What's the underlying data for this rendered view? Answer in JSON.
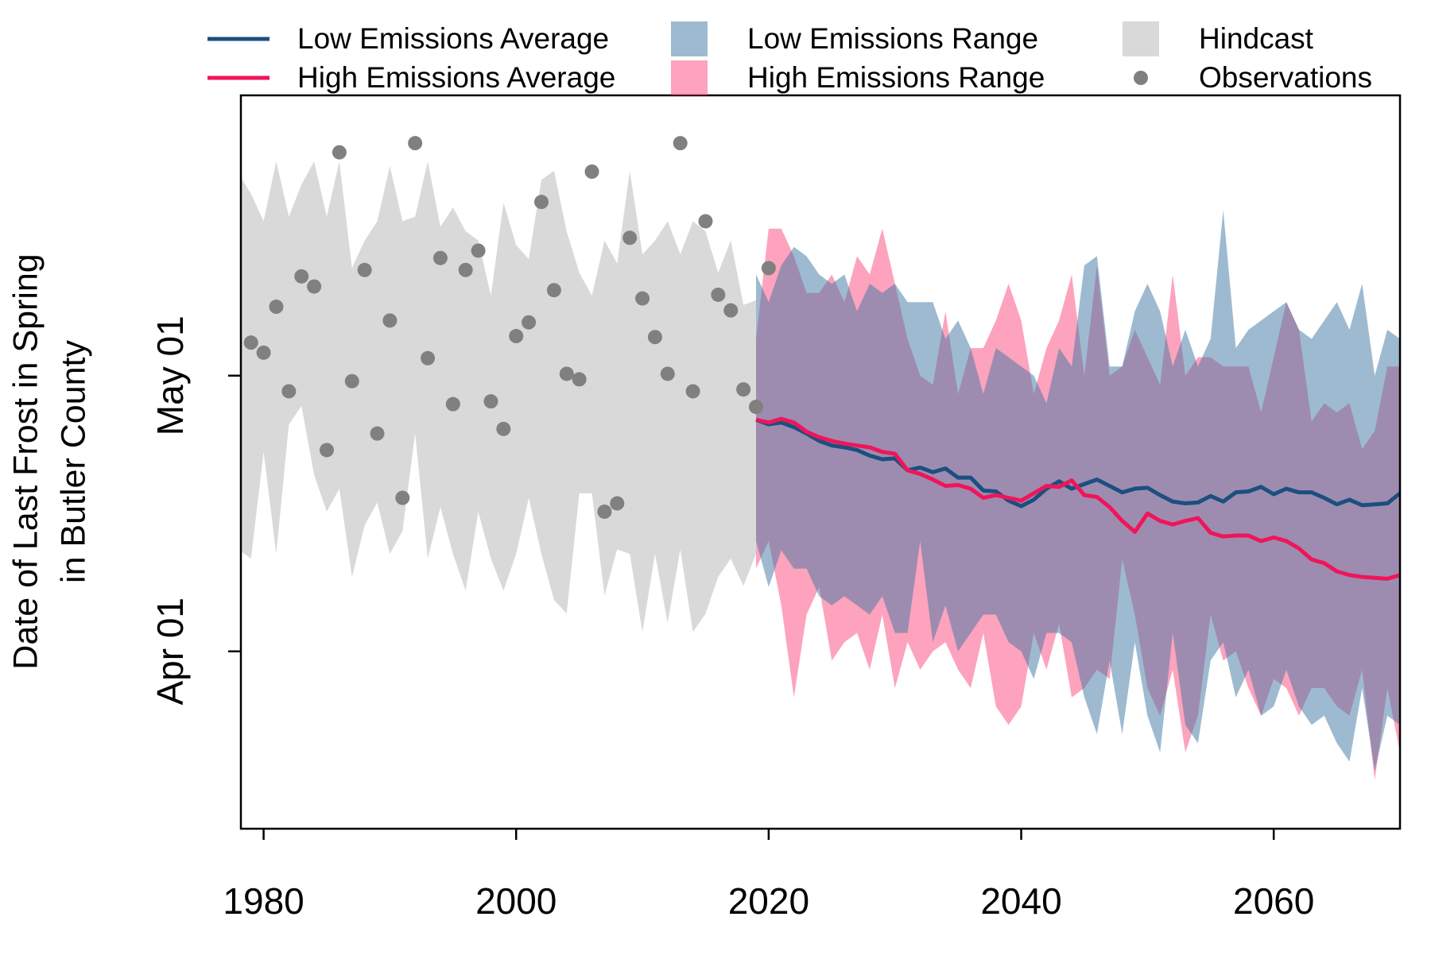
{
  "chart_data": {
    "type": "line",
    "ylabel": [
      "Date of Last Frost in Spring",
      "in Butler County"
    ],
    "xlim": [
      1978.2,
      2070
    ],
    "xticks": [
      1980,
      2000,
      2020,
      2040,
      2060
    ],
    "ylim": [
      71.7,
      151.5
    ],
    "yticks": [
      {
        "value": 91,
        "label": "Apr 01"
      },
      {
        "value": 121,
        "label": "May 01"
      }
    ],
    "series": [
      {
        "name": "Low Emissions Average",
        "type": "line",
        "color": "#1b4f80",
        "x": [
          2019,
          2020,
          2021,
          2022,
          2023,
          2024,
          2025,
          2026,
          2027,
          2028,
          2029,
          2030,
          2031,
          2032,
          2033,
          2034,
          2035,
          2036,
          2037,
          2038,
          2039,
          2040,
          2041,
          2042,
          2043,
          2044,
          2045,
          2046,
          2047,
          2048,
          2049,
          2050,
          2051,
          2052,
          2053,
          2054,
          2055,
          2056,
          2057,
          2058,
          2059,
          2060,
          2061,
          2062,
          2063,
          2064,
          2065,
          2066,
          2067,
          2068,
          2069,
          2070
        ],
        "values": [
          116.2,
          115.7,
          115.9,
          115.4,
          114.7,
          113.9,
          113.4,
          113.2,
          112.9,
          112.3,
          111.9,
          112.0,
          110.7,
          111.0,
          110.5,
          110.9,
          109.9,
          109.9,
          108.5,
          108.4,
          107.4,
          106.8,
          107.5,
          108.7,
          109.5,
          108.7,
          109.2,
          109.7,
          109.0,
          108.3,
          108.7,
          108.8,
          108.0,
          107.3,
          107.1,
          107.2,
          107.9,
          107.3,
          108.3,
          108.4,
          108.9,
          108.1,
          108.7,
          108.3,
          108.3,
          107.7,
          107.0,
          107.5,
          106.9,
          107.0,
          107.1,
          108.2
        ]
      },
      {
        "name": "High Emissions Average",
        "type": "line",
        "color": "#f0155a",
        "x": [
          2019,
          2020,
          2021,
          2022,
          2023,
          2024,
          2025,
          2026,
          2027,
          2028,
          2029,
          2030,
          2031,
          2032,
          2033,
          2034,
          2035,
          2036,
          2037,
          2038,
          2039,
          2040,
          2041,
          2042,
          2043,
          2044,
          2045,
          2046,
          2047,
          2048,
          2049,
          2050,
          2051,
          2052,
          2053,
          2054,
          2055,
          2056,
          2057,
          2058,
          2059,
          2060,
          2061,
          2062,
          2063,
          2064,
          2065,
          2066,
          2067,
          2068,
          2069,
          2070
        ],
        "values": [
          116.2,
          115.9,
          116.3,
          115.9,
          114.9,
          114.3,
          113.9,
          113.6,
          113.4,
          113.2,
          112.7,
          112.5,
          110.7,
          110.3,
          109.7,
          109.0,
          109.1,
          108.7,
          107.7,
          108.0,
          107.7,
          107.4,
          108.2,
          109.0,
          108.9,
          109.6,
          108.0,
          107.8,
          106.7,
          105.2,
          104.0,
          106.0,
          105.2,
          104.8,
          105.2,
          105.5,
          103.9,
          103.5,
          103.6,
          103.6,
          103.0,
          103.4,
          103.0,
          102.2,
          101.0,
          100.6,
          99.7,
          99.3,
          99.1,
          99.0,
          98.9,
          99.3
        ]
      },
      {
        "name": "Low Emissions Range",
        "type": "band",
        "color": "rgba(61,117,163,0.5)",
        "x": [
          2019,
          2020,
          2021,
          2022,
          2023,
          2024,
          2025,
          2026,
          2027,
          2028,
          2029,
          2030,
          2031,
          2032,
          2033,
          2034,
          2035,
          2036,
          2037,
          2038,
          2039,
          2040,
          2041,
          2042,
          2043,
          2044,
          2045,
          2046,
          2047,
          2048,
          2049,
          2050,
          2051,
          2052,
          2053,
          2054,
          2055,
          2056,
          2057,
          2058,
          2059,
          2060,
          2061,
          2062,
          2063,
          2064,
          2065,
          2066,
          2067,
          2068,
          2069,
          2070
        ],
        "upper": [
          132,
          129,
          133,
          135,
          134,
          132,
          131,
          132,
          128,
          131,
          130,
          131,
          129,
          129,
          129,
          125,
          127,
          124,
          119,
          124,
          123,
          122,
          121,
          118,
          124,
          122,
          133,
          134,
          122,
          122,
          128,
          131,
          128,
          122,
          126,
          122,
          125,
          139,
          124,
          126,
          127,
          128,
          129,
          126,
          125,
          127,
          129,
          126,
          131,
          121,
          126,
          125
        ],
        "lower": [
          103,
          98,
          102,
          100,
          100,
          97,
          96,
          97,
          96,
          95,
          97,
          93,
          93,
          103,
          92,
          96,
          91,
          93,
          95,
          95,
          92,
          91,
          88,
          93,
          93,
          92,
          86,
          82,
          90,
          82,
          92,
          84,
          80,
          93,
          83,
          81,
          90,
          92,
          86,
          89,
          84,
          85,
          89,
          85,
          83,
          84,
          81,
          79,
          87,
          78,
          84,
          83
        ]
      },
      {
        "name": "High Emissions Range",
        "type": "band",
        "color": "rgba(252,72,124,0.5)",
        "x": [
          2019,
          2020,
          2021,
          2022,
          2023,
          2024,
          2025,
          2026,
          2027,
          2028,
          2029,
          2030,
          2031,
          2032,
          2033,
          2034,
          2035,
          2036,
          2037,
          2038,
          2039,
          2040,
          2041,
          2042,
          2043,
          2044,
          2045,
          2046,
          2047,
          2048,
          2049,
          2050,
          2051,
          2052,
          2053,
          2054,
          2055,
          2056,
          2057,
          2058,
          2059,
          2060,
          2061,
          2062,
          2063,
          2064,
          2065,
          2066,
          2067,
          2068,
          2069,
          2070
        ],
        "upper": [
          125,
          137,
          137,
          134,
          130,
          130,
          132,
          129,
          134,
          132,
          137,
          131,
          125,
          121,
          120,
          128,
          119,
          124,
          124,
          127,
          131,
          127,
          119,
          124,
          127,
          132,
          121,
          133,
          121,
          122,
          126,
          123,
          120,
          132,
          121,
          123,
          123,
          122,
          122,
          122,
          117,
          123,
          129,
          126,
          116,
          118,
          117,
          118,
          113,
          115,
          122,
          122
        ],
        "lower": [
          100,
          103,
          96,
          86,
          95,
          98,
          90,
          92,
          93,
          89,
          95,
          87,
          92,
          89,
          91,
          92,
          89,
          87,
          93,
          85,
          83,
          85,
          93,
          89,
          94,
          86,
          87,
          89,
          88,
          101,
          95,
          87,
          84,
          89,
          80,
          84,
          95,
          90,
          91,
          87,
          84,
          88,
          87,
          84,
          87,
          87,
          85,
          84,
          89,
          77,
          87,
          80
        ]
      },
      {
        "name": "Hindcast",
        "type": "band",
        "color": "#d9d9d9",
        "x": [
          1978,
          1979,
          1980,
          1981,
          1982,
          1983,
          1984,
          1985,
          1986,
          1987,
          1988,
          1989,
          1990,
          1991,
          1992,
          1993,
          1994,
          1995,
          1996,
          1997,
          1998,
          1999,
          2000,
          2001,
          2002,
          2003,
          2004,
          2005,
          2006,
          2007,
          2008,
          2009,
          2010,
          2011,
          2012,
          2013,
          2014,
          2015,
          2016,
          2017,
          2018,
          2019
        ],
        "upper": [
          143.0,
          140.8,
          137.8,
          144.3,
          138.3,
          141.8,
          144.3,
          138.3,
          144.3,
          132.7,
          135.7,
          137.8,
          143.8,
          137.8,
          138.3,
          144.3,
          137.2,
          139.3,
          136.7,
          135.7,
          129.7,
          139.8,
          135.2,
          133.7,
          142.3,
          143.3,
          136.7,
          132.2,
          129.7,
          135.7,
          133.2,
          143.3,
          134.2,
          135.7,
          137.8,
          134.2,
          137.8,
          136.7,
          132.2,
          135.7,
          128.7,
          129.2
        ],
        "lower": [
          102.1,
          101.1,
          112.7,
          101.6,
          115.7,
          117.7,
          110.2,
          106.2,
          108.7,
          99.1,
          104.7,
          107.2,
          101.6,
          104.1,
          114.7,
          101.1,
          106.7,
          101.6,
          97.6,
          106.2,
          101.1,
          97.6,
          101.6,
          107.7,
          101.6,
          96.6,
          95.1,
          108.2,
          108.2,
          97.1,
          102.1,
          101.6,
          93.1,
          101.6,
          94.1,
          102.1,
          93.1,
          95.1,
          99.1,
          101.1,
          98.1,
          101.6
        ]
      },
      {
        "name": "Observations",
        "type": "scatter",
        "color": "#808080",
        "x": [
          1979,
          1980,
          1981,
          1982,
          1983,
          1984,
          1985,
          1986,
          1987,
          1988,
          1989,
          1990,
          1991,
          1992,
          1993,
          1994,
          1995,
          1996,
          1997,
          1998,
          1999,
          2000,
          2001,
          2002,
          2003,
          2004,
          2005,
          2006,
          2007,
          2008,
          2009,
          2010,
          2011,
          2012,
          2013,
          2014,
          2015,
          2016,
          2017,
          2018,
          2019,
          2020
        ],
        "values": [
          124.6,
          123.5,
          128.5,
          119.3,
          131.8,
          130.7,
          112.9,
          145.3,
          120.4,
          132.5,
          114.7,
          127.0,
          107.7,
          146.3,
          122.9,
          133.8,
          117.9,
          132.5,
          134.6,
          118.2,
          115.2,
          125.3,
          126.8,
          139.9,
          130.3,
          121.2,
          120.6,
          143.2,
          106.2,
          107.1,
          136.0,
          129.4,
          125.2,
          121.2,
          146.3,
          119.3,
          137.8,
          129.8,
          128.1,
          119.5,
          117.6,
          132.7
        ]
      }
    ]
  }
}
